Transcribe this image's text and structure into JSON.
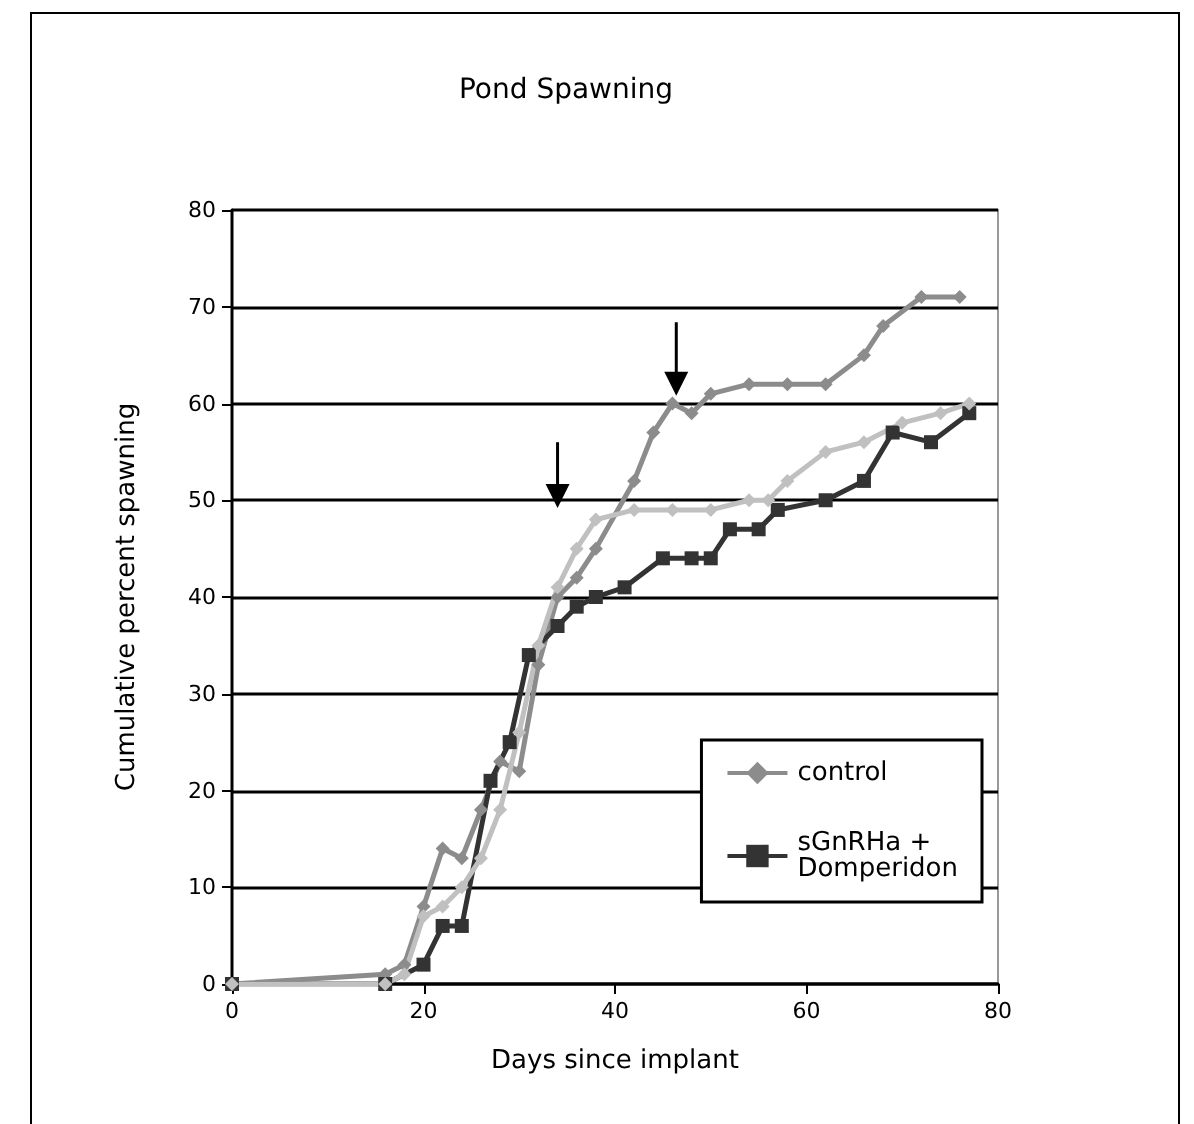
{
  "chart_data": {
    "type": "line",
    "title": "Pond Spawning",
    "xlabel": "Days since implant",
    "ylabel": "Cumulative percent spawning",
    "xlim": [
      0,
      80
    ],
    "xticks": [
      0,
      20,
      40,
      60,
      80
    ],
    "ylim": [
      0,
      80
    ],
    "yticks": [
      0,
      10,
      20,
      30,
      40,
      50,
      60,
      70,
      80
    ],
    "grid": "y",
    "legend": "bottom right",
    "series": [
      {
        "name": "control",
        "color": "#8c8c8c",
        "marker": "diamond",
        "x": [
          0,
          16,
          18,
          20,
          22,
          24,
          26,
          28,
          30,
          32,
          34,
          36,
          38,
          42,
          44,
          46,
          48,
          50,
          54,
          58,
          62,
          66,
          68,
          72,
          76
        ],
        "values": [
          0,
          1,
          2,
          8,
          14,
          13,
          18,
          23,
          22,
          33,
          40,
          42,
          45,
          52,
          57,
          60,
          59,
          61,
          62,
          62,
          62,
          65,
          68,
          71,
          71
        ]
      },
      {
        "name": "sGnRHa +\nDomperidon",
        "color": "#333333",
        "marker": "square",
        "x": [
          0,
          16,
          20,
          22,
          24,
          27,
          29,
          31,
          34,
          36,
          38,
          41,
          45,
          48,
          50,
          52,
          55,
          57,
          62,
          66,
          69,
          73,
          77
        ],
        "values": [
          0,
          0,
          2,
          6,
          6,
          21,
          25,
          34,
          37,
          39,
          40,
          41,
          44,
          44,
          44,
          47,
          47,
          49,
          50,
          52,
          57,
          56,
          59
        ]
      },
      {
        "color": "#c0c0c0",
        "marker": "diamond",
        "x": [
          0,
          16,
          18,
          20,
          22,
          24,
          26,
          28,
          30,
          32,
          34,
          36,
          38,
          42,
          46,
          50,
          54,
          56,
          58,
          62,
          66,
          70,
          74,
          77
        ],
        "values": [
          0,
          0,
          1,
          7,
          8,
          10,
          13,
          18,
          26,
          35,
          41,
          45,
          48,
          49,
          49,
          49,
          50,
          50,
          52,
          55,
          56,
          58,
          59,
          60
        ]
      }
    ]
  }
}
